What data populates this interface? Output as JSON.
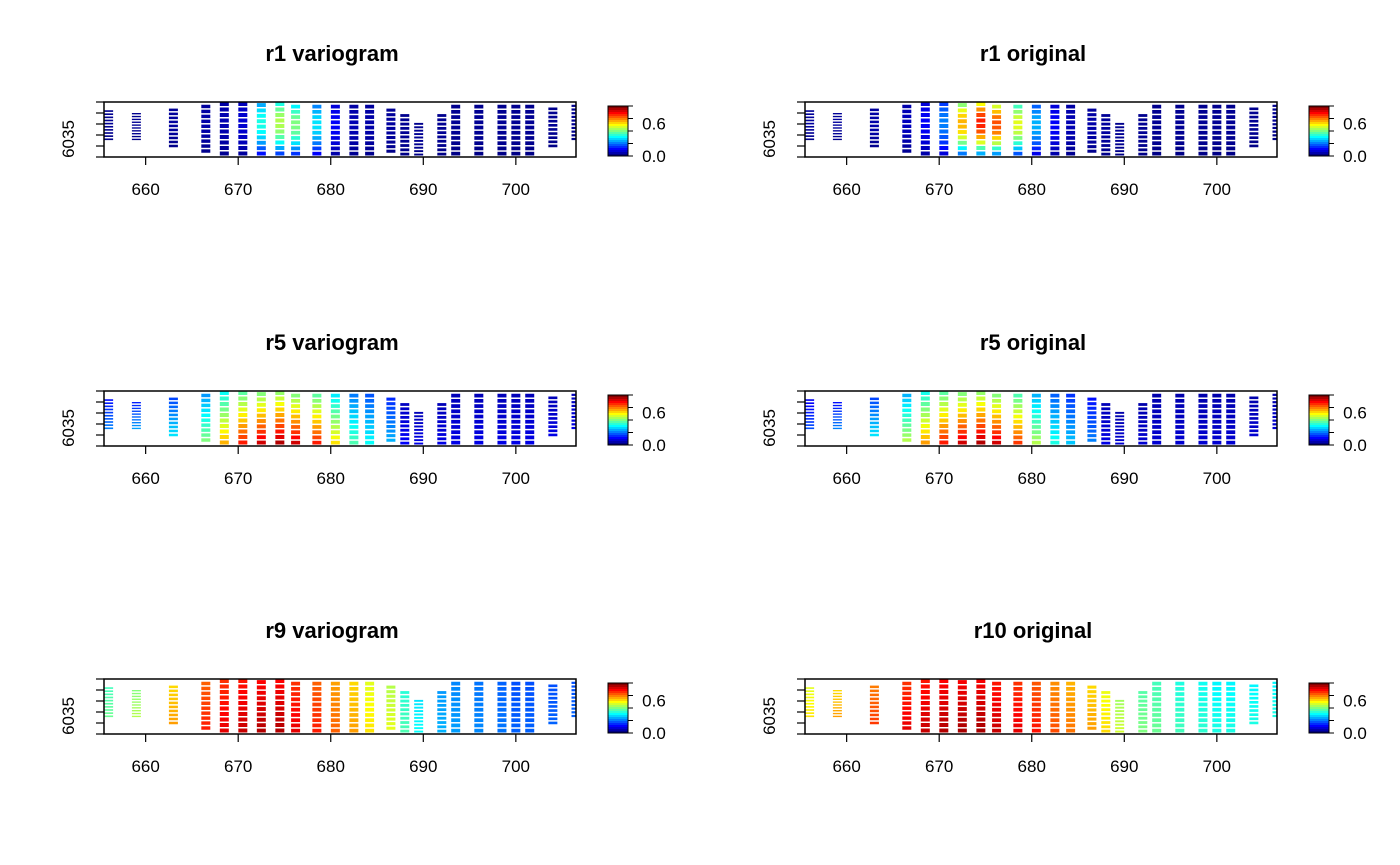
{
  "figure": {
    "layout": "3 rows x 2 columns of raster map panels"
  },
  "chart_data": [
    {
      "type": "heatmap",
      "title": "r1 variogram",
      "xticks": [
        660,
        670,
        680,
        690,
        700
      ],
      "yticks": [
        "6035"
      ],
      "xlim": [
        655.5,
        706.5
      ],
      "legend_ticks": [
        "0.0",
        "0.6"
      ],
      "zlim": [
        0,
        1
      ],
      "colormap": "jet",
      "values": [
        0.02,
        0.02,
        0.03,
        0.04,
        0.05,
        0.08,
        0.4,
        0.55,
        0.5,
        0.35,
        0.12,
        0.05,
        0.04,
        0.03,
        0.02,
        0.02,
        0.02,
        0.02,
        0.02,
        0.02,
        0.02
      ],
      "profile": "center-peak",
      "grid": false,
      "legend": "right"
    },
    {
      "type": "heatmap",
      "title": "r1 original",
      "xticks": [
        660,
        670,
        680,
        690,
        700
      ],
      "yticks": [
        "6035"
      ],
      "xlim": [
        655.5,
        706.5
      ],
      "legend_ticks": [
        "0.0",
        "0.6"
      ],
      "zlim": [
        0,
        1
      ],
      "colormap": "jet",
      "values": [
        0.03,
        0.03,
        0.04,
        0.06,
        0.12,
        0.25,
        0.7,
        0.85,
        0.8,
        0.6,
        0.3,
        0.12,
        0.05,
        0.04,
        0.03,
        0.02,
        0.02,
        0.02,
        0.02,
        0.02,
        0.02
      ],
      "profile": "center-peak",
      "grid": false,
      "legend": "right"
    },
    {
      "type": "heatmap",
      "title": "r5 variogram",
      "xticks": [
        660,
        670,
        680,
        690,
        700
      ],
      "yticks": [
        "6035"
      ],
      "xlim": [
        655.5,
        706.5
      ],
      "legend_ticks": [
        "0.0",
        "0.6"
      ],
      "zlim": [
        0,
        1
      ],
      "colormap": "jet",
      "values": [
        0.25,
        0.28,
        0.35,
        0.5,
        0.7,
        0.85,
        0.92,
        0.95,
        0.92,
        0.85,
        0.65,
        0.45,
        0.38,
        0.3,
        0.12,
        0.1,
        0.1,
        0.1,
        0.1,
        0.1,
        0.1
      ],
      "profile": "bottom-high",
      "grid": false,
      "legend": "right"
    },
    {
      "type": "heatmap",
      "title": "r5 original",
      "xticks": [
        660,
        670,
        680,
        690,
        700
      ],
      "yticks": [
        "6035"
      ],
      "xlim": [
        655.5,
        706.5
      ],
      "legend_ticks": [
        "0.0",
        "0.6"
      ],
      "zlim": [
        0,
        1
      ],
      "colormap": "jet",
      "values": [
        0.2,
        0.25,
        0.35,
        0.55,
        0.72,
        0.85,
        0.92,
        0.95,
        0.92,
        0.82,
        0.55,
        0.4,
        0.32,
        0.25,
        0.1,
        0.08,
        0.08,
        0.08,
        0.08,
        0.08,
        0.08
      ],
      "profile": "bottom-high",
      "grid": false,
      "legend": "right"
    },
    {
      "type": "heatmap",
      "title": "r9 variogram",
      "xticks": [
        660,
        670,
        680,
        690,
        700
      ],
      "yticks": [
        "6035"
      ],
      "xlim": [
        655.5,
        706.5
      ],
      "legend_ticks": [
        "0.0",
        "0.6"
      ],
      "zlim": [
        0,
        1
      ],
      "colormap": "jet",
      "values": [
        0.48,
        0.55,
        0.72,
        0.85,
        0.9,
        0.93,
        0.95,
        0.95,
        0.9,
        0.85,
        0.78,
        0.72,
        0.65,
        0.6,
        0.45,
        0.38,
        0.3,
        0.28,
        0.26,
        0.24,
        0.22
      ],
      "profile": "uniform",
      "grid": false,
      "legend": "right"
    },
    {
      "type": "heatmap",
      "title": "r10 original",
      "xticks": [
        660,
        670,
        680,
        690,
        700
      ],
      "yticks": [
        "6035"
      ],
      "xlim": [
        655.5,
        706.5
      ],
      "legend_ticks": [
        "0.0",
        "0.6"
      ],
      "zlim": [
        0,
        1
      ],
      "colormap": "jet",
      "values": [
        0.65,
        0.72,
        0.82,
        0.9,
        0.93,
        0.95,
        0.96,
        0.96,
        0.93,
        0.9,
        0.86,
        0.8,
        0.76,
        0.72,
        0.66,
        0.58,
        0.5,
        0.48,
        0.44,
        0.42,
        0.4
      ],
      "profile": "uniform",
      "grid": false,
      "legend": "right"
    }
  ]
}
